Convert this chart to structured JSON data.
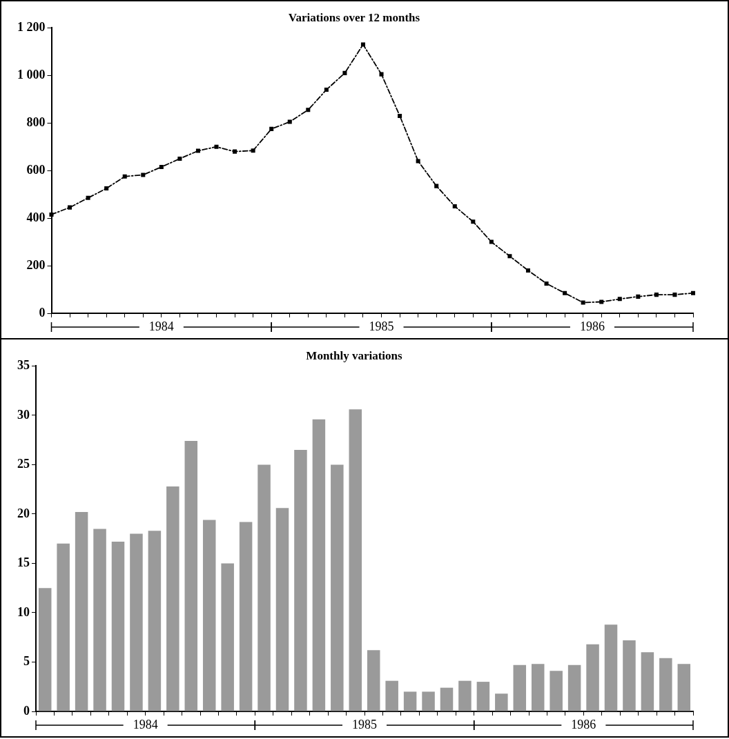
{
  "chart_data": [
    {
      "type": "line",
      "title": "Variations over 12 months",
      "categories": [
        null,
        null,
        null,
        null,
        null,
        null,
        null,
        null,
        null,
        null,
        null,
        null,
        null,
        null,
        null,
        null,
        null,
        null,
        null,
        null,
        null,
        null,
        null,
        null,
        null,
        null,
        null,
        null,
        null,
        null,
        null,
        null,
        null,
        null,
        null,
        null
      ],
      "values": [
        415,
        445,
        485,
        525,
        575,
        582,
        615,
        650,
        683,
        700,
        680,
        684,
        775,
        805,
        855,
        940,
        1010,
        1130,
        1005,
        830,
        640,
        535,
        450,
        385,
        300,
        240,
        180,
        125,
        85,
        45,
        48,
        60,
        70,
        78,
        78,
        85
      ],
      "color": "#000000",
      "marker": "square",
      "line_style": "dashed",
      "ylim": [
        0,
        1200
      ],
      "yticks": [
        0,
        200,
        400,
        600,
        800,
        {
          "value": 1000,
          "label": "1 000"
        },
        {
          "value": 1200,
          "label": "1 200"
        }
      ],
      "annotations": [
        "1984",
        "1985",
        "1986"
      ]
    },
    {
      "type": "bar",
      "title": "Monthly variations",
      "categories": [
        null,
        null,
        null,
        null,
        null,
        null,
        null,
        null,
        null,
        null,
        null,
        null,
        null,
        null,
        null,
        null,
        null,
        null,
        null,
        null,
        null,
        null,
        null,
        null,
        null,
        null,
        null,
        null,
        null,
        null,
        null,
        null,
        null,
        null,
        null,
        null
      ],
      "values": [
        12.5,
        17,
        20.2,
        18.5,
        17.2,
        18,
        18.3,
        22.8,
        27.4,
        19.4,
        15,
        19.2,
        25,
        20.6,
        26.5,
        29.6,
        25,
        30.6,
        6.2,
        3.1,
        2,
        2,
        2.4,
        3.1,
        3,
        1.8,
        4.7,
        4.8,
        4.1,
        4.7,
        6.8,
        8.8,
        7.2,
        6,
        5.4,
        4.8
      ],
      "color": "#9a9a9a",
      "ylim": [
        0,
        35
      ],
      "yticks": [
        0,
        5,
        10,
        15,
        20,
        25,
        30,
        35
      ],
      "annotations": [
        "1984",
        "1985",
        "1986"
      ]
    }
  ]
}
